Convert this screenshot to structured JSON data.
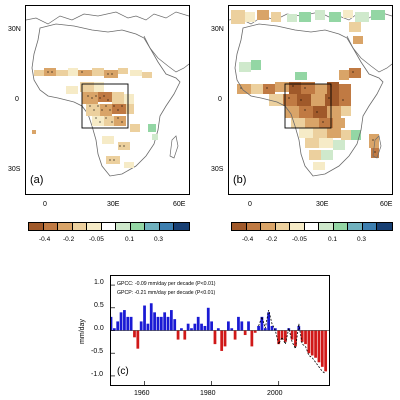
{
  "colors": {
    "palette": [
      "#a0592a",
      "#c07a43",
      "#d9a468",
      "#ecd09e",
      "#f6ebc7",
      "#ffffff",
      "#cfe9cc",
      "#93d6a4",
      "#6fb1be",
      "#3d7fb0",
      "#173f73"
    ],
    "bar_positive": "#1a1ad4",
    "bar_negative": "#d01818",
    "coast": "#6b6b6b",
    "box": "#000000"
  },
  "map_a": {
    "panel_label": "(a)",
    "y_ticks": [
      "30N",
      "0",
      "30S"
    ],
    "x_ticks": [
      "0",
      "30E",
      "60E"
    ]
  },
  "map_b": {
    "panel_label": "(b)",
    "y_ticks": [
      "30N",
      "0",
      "30S"
    ],
    "x_ticks": [
      "0",
      "30E",
      "60E"
    ]
  },
  "colorbar": {
    "labels": [
      "-0.4",
      "-0.2",
      "-0.05",
      "0.1",
      "0.3"
    ]
  },
  "timeseries": {
    "panel_label": "(c)",
    "ylabel": "mm/day",
    "y_ticks": [
      "1.0",
      "0.5",
      "0.0",
      "-0.5",
      "-1.0"
    ],
    "x_ticks": [
      "1960",
      "1980",
      "2000"
    ],
    "note_gpcc": "GPCC: -0.09 mm/day per decade (P<0.01)",
    "note_gpcp": "GPCP: -0.21 mm/day per decade (P<0.01)"
  },
  "chart_data": [
    {
      "type": "bar",
      "panel": "(c)",
      "title": "",
      "xlabel": "",
      "ylabel": "mm/day",
      "xlim": [
        1950,
        2015
      ],
      "ylim": [
        -1.2,
        1.2
      ],
      "series": [
        {
          "values_by_year": {
            "1950": 0.3,
            "1951": 0.05,
            "1952": 0.2,
            "1953": 0.4,
            "1954": 0.45,
            "1955": 0.3,
            "1956": 0.3,
            "1957": -0.15,
            "1958": -0.4,
            "1959": 0.2,
            "1960": 0.55,
            "1961": 0.15,
            "1962": 0.6,
            "1963": 0.4,
            "1964": 0.3,
            "1965": 0.3,
            "1966": 0.4,
            "1967": 0.3,
            "1968": 0.45,
            "1969": 0.25,
            "1970": -0.2,
            "1971": 0.05,
            "1972": -0.2,
            "1973": 0.15,
            "1974": 0.05,
            "1975": 0.15,
            "1976": 0.3,
            "1977": 0.15,
            "1978": 0.1,
            "1979": 0.5,
            "1980": 0.2,
            "1981": -0.3,
            "1982": 0.05,
            "1983": -0.45,
            "1984": -0.35,
            "1985": 0.2,
            "1986": 0.05,
            "1987": -0.2,
            "1988": 0.3,
            "1989": 0.2,
            "1990": -0.1,
            "1991": 0.2,
            "1992": -0.35,
            "1993": -0.05,
            "1994": 0.1,
            "1995": 0.3,
            "1996": 0.05,
            "1997": 0.4,
            "1998": 0.1,
            "1999": 0.05,
            "2000": -0.3,
            "2001": -0.2,
            "2002": -0.25,
            "2003": 0.05,
            "2004": -0.2,
            "2005": -0.35,
            "2006": 0.1,
            "2007": -0.25,
            "2008": -0.3,
            "2009": -0.5,
            "2010": -0.55,
            "2011": -0.6,
            "2012": -0.7,
            "2013": -0.8,
            "2014": -0.9
          }
        },
        {
          "line": true,
          "values_by_year": {
            "1994": 0.1,
            "1995": 0.3,
            "1996": 0.05,
            "1997": 0.45,
            "1998": 0.15,
            "1999": 0.0,
            "2000": -0.3,
            "2001": -0.15,
            "2002": -0.3,
            "2003": 0.05,
            "2004": -0.25,
            "2005": -0.4,
            "2006": 0.15,
            "2007": -0.3,
            "2008": -0.35,
            "2009": -0.55,
            "2010": -0.6,
            "2011": -0.7,
            "2012": -0.8,
            "2013": -0.9,
            "2014": -0.95
          }
        }
      ]
    }
  ]
}
